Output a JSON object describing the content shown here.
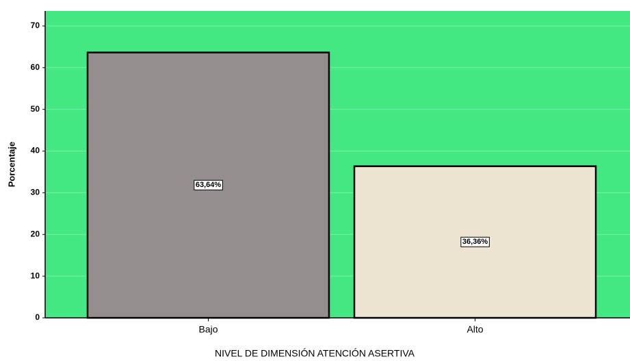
{
  "chart_data": {
    "type": "bar",
    "xlabel": "NIVEL DE DIMENSIÓN ATENCIÓN ASERTIVA",
    "ylabel": "Porcentaje",
    "categories": [
      "Bajo",
      "Alto"
    ],
    "values": [
      63.64,
      36.36
    ],
    "value_labels": [
      "63,64%",
      "36,36%"
    ],
    "colors": [
      "#948f8c",
      "#ede5d1"
    ],
    "background": "#43e882",
    "ylim": [
      0,
      73.6
    ],
    "yticks": [
      0,
      10,
      20,
      30,
      40,
      50,
      60,
      70
    ],
    "grid": true
  }
}
